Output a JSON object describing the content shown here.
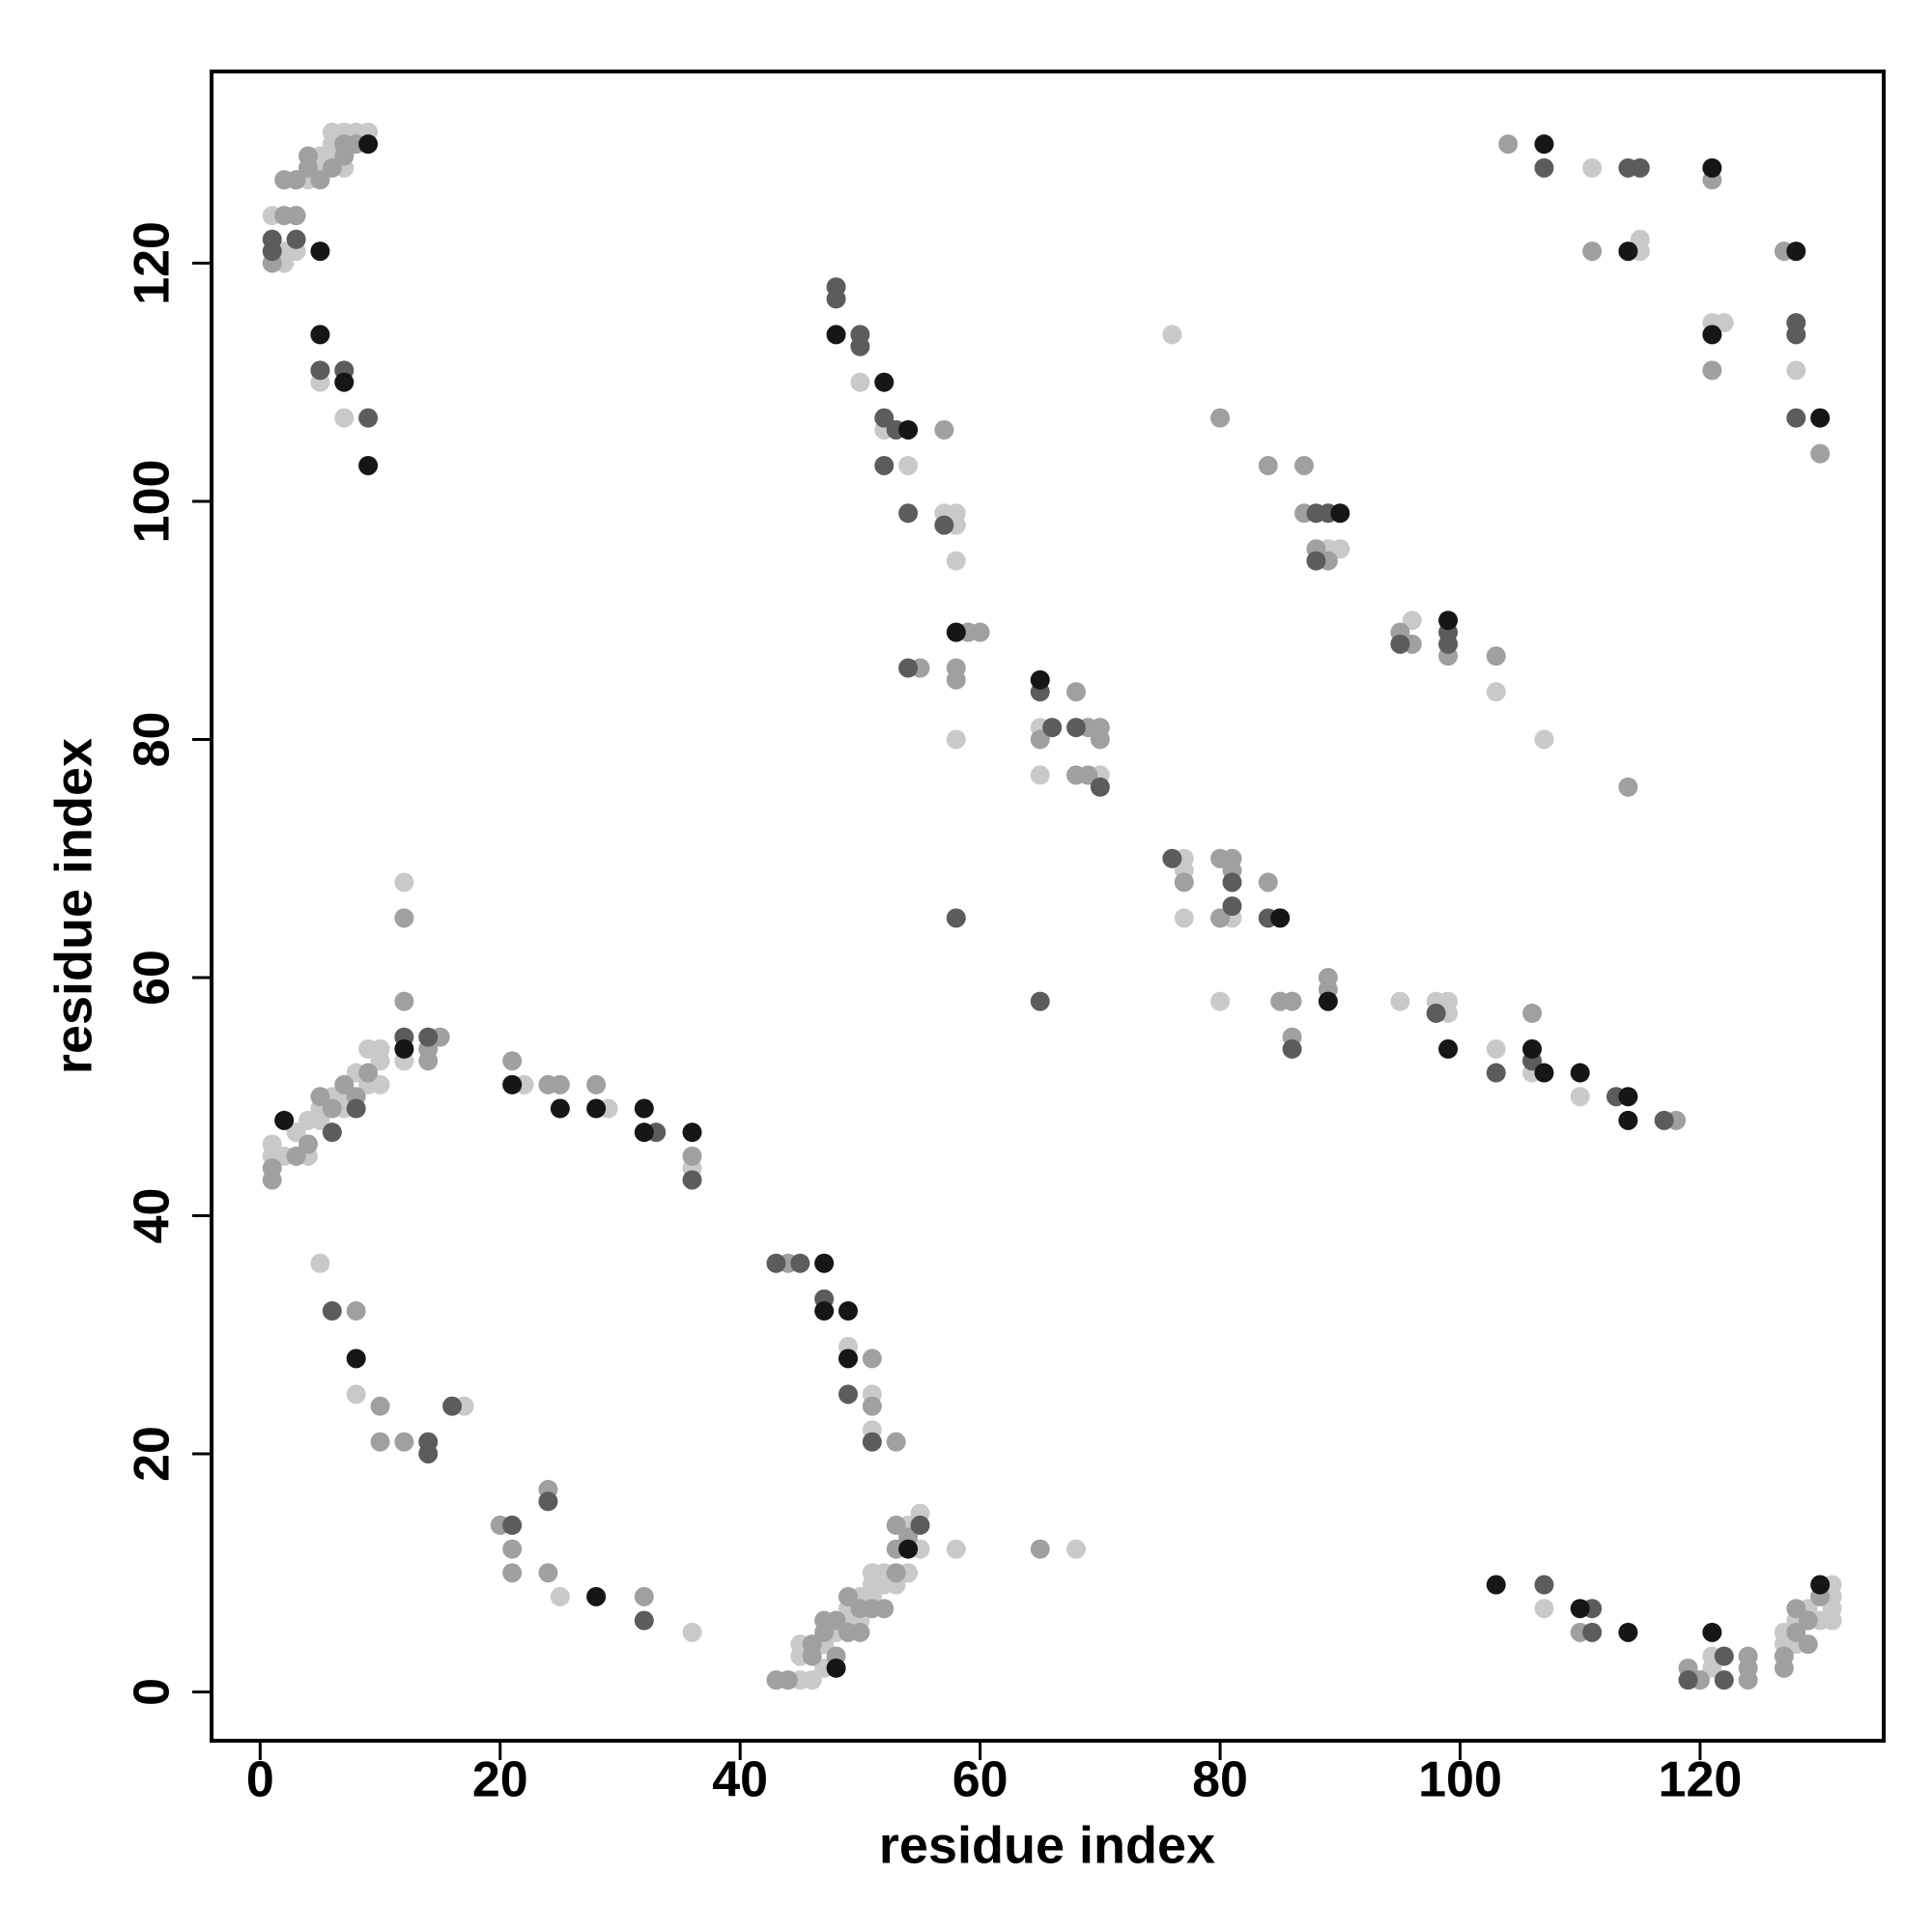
{
  "chart_data": {
    "type": "scatter",
    "xlabel": "residue index",
    "ylabel": "residue index",
    "xlim": [
      -4.05,
      135.3
    ],
    "ylim": [
      -4.1,
      136.1
    ],
    "xticks": [
      0,
      20,
      40,
      60,
      80,
      100,
      120
    ],
    "yticks": [
      0,
      20,
      40,
      60,
      80,
      100,
      120
    ],
    "grid": false,
    "series": [
      {
        "color": "#c9c9c9",
        "x": [
          1,
          2,
          2,
          3,
          4,
          5,
          5,
          6,
          6,
          7,
          7,
          8,
          9,
          6,
          5,
          7,
          50,
          52,
          54,
          57,
          58,
          58,
          58,
          58,
          65,
          65,
          70,
          76,
          89,
          90,
          96,
          107,
          103,
          77,
          77,
          77,
          81,
          80,
          95,
          98,
          99,
          99,
          103,
          106,
          110,
          111,
          115,
          115,
          121,
          122,
          128,
          1,
          1,
          2,
          3,
          4,
          4,
          5,
          5,
          6,
          7,
          7,
          8,
          9,
          9,
          10,
          10,
          10,
          12,
          12,
          22,
          29,
          36,
          5,
          8,
          17,
          25,
          36,
          49,
          51,
          51,
          45,
          45,
          45,
          46,
          47,
          47,
          48,
          49,
          49,
          50,
          50,
          51,
          51,
          51,
          52,
          52,
          53,
          54,
          54,
          55,
          55,
          58,
          68,
          107,
          121,
          121,
          127,
          127,
          128,
          128,
          129,
          130,
          131,
          131,
          131,
          131
        ],
        "values": [
          124,
          120,
          121,
          121,
          127,
          128,
          129,
          129,
          130,
          128,
          131,
          131,
          131,
          131,
          110,
          107,
          110,
          106,
          103,
          99,
          99,
          98,
          95,
          80,
          81,
          77,
          77,
          114,
          96,
          96,
          90,
          80,
          84,
          70,
          69,
          65,
          65,
          58,
          58,
          58,
          58,
          57,
          54,
          52,
          50,
          128,
          122,
          121,
          115,
          115,
          111,
          45,
          46,
          45,
          47,
          48,
          45,
          49,
          48,
          50,
          50,
          49,
          52,
          51,
          54,
          54,
          53,
          51,
          68,
          53,
          51,
          49,
          44,
          36,
          25,
          24,
          8,
          5,
          29,
          25,
          22,
          1,
          3,
          4,
          1,
          2,
          4,
          5,
          6,
          7,
          6,
          8,
          8,
          9,
          10,
          9,
          10,
          9,
          10,
          14,
          12,
          15,
          12,
          12,
          7,
          3,
          2,
          4,
          5,
          4,
          6,
          7,
          6,
          9,
          8,
          7,
          6
        ]
      },
      {
        "color": "#a0a0a0",
        "x": [
          1,
          2,
          2,
          3,
          3,
          4,
          4,
          5,
          6,
          7,
          7,
          8,
          57,
          59,
          60,
          55,
          58,
          58,
          65,
          68,
          69,
          70,
          70,
          68,
          69,
          80,
          84,
          87,
          87,
          88,
          89,
          95,
          96,
          99,
          103,
          114,
          77,
          80,
          81,
          81,
          80,
          84,
          85,
          86,
          86,
          89,
          89,
          106,
          118,
          104,
          111,
          121,
          121,
          127,
          130,
          1,
          1,
          3,
          4,
          5,
          6,
          7,
          8,
          9,
          12,
          12,
          14,
          14,
          15,
          21,
          24,
          25,
          28,
          36,
          8,
          10,
          10,
          12,
          20,
          21,
          21,
          24,
          24,
          32,
          44,
          51,
          51,
          53,
          43,
          44,
          46,
          46,
          47,
          47,
          48,
          48,
          49,
          49,
          50,
          50,
          51,
          52,
          53,
          53,
          53,
          54,
          65,
          110,
          119,
          120,
          124,
          124,
          124,
          127,
          127,
          128,
          128,
          129,
          129,
          130
        ],
        "values": [
          120,
          124,
          127,
          124,
          127,
          128,
          129,
          127,
          128,
          129,
          130,
          130,
          106,
          89,
          89,
          86,
          86,
          85,
          80,
          84,
          81,
          81,
          80,
          77,
          77,
          107,
          103,
          103,
          99,
          96,
          95,
          89,
          88,
          87,
          87,
          76,
          68,
          70,
          70,
          69,
          65,
          68,
          58,
          58,
          55,
          60,
          59,
          57,
          48,
          130,
          121,
          127,
          111,
          121,
          104,
          43,
          44,
          45,
          46,
          50,
          49,
          51,
          50,
          52,
          65,
          58,
          54,
          53,
          55,
          53,
          51,
          51,
          51,
          45,
          32,
          24,
          21,
          21,
          14,
          12,
          10,
          17,
          10,
          8,
          36,
          28,
          24,
          21,
          1,
          1,
          3,
          4,
          5,
          6,
          3,
          6,
          5,
          8,
          5,
          7,
          7,
          7,
          10,
          12,
          14,
          13,
          12,
          5,
          2,
          1,
          3,
          2,
          1,
          2,
          3,
          5,
          7,
          4,
          6,
          8
        ]
      },
      {
        "color": "#5c5c5c",
        "x": [
          1,
          1,
          3,
          5,
          7,
          9,
          48,
          48,
          50,
          50,
          52,
          53,
          52,
          54,
          57,
          54,
          58,
          65,
          66,
          68,
          70,
          65,
          88,
          89,
          88,
          95,
          99,
          99,
          76,
          81,
          81,
          84,
          86,
          98,
          103,
          106,
          113,
          117,
          107,
          114,
          115,
          128,
          128,
          128,
          6,
          8,
          12,
          14,
          33,
          36,
          6,
          14,
          14,
          16,
          21,
          24,
          32,
          43,
          45,
          47,
          49,
          51,
          55,
          107,
          111,
          111,
          119,
          122,
          122
        ],
        "values": [
          121,
          122,
          122,
          111,
          111,
          107,
          118,
          117,
          114,
          113,
          107,
          106,
          103,
          99,
          98,
          86,
          65,
          84,
          81,
          81,
          76,
          58,
          99,
          99,
          95,
          88,
          89,
          88,
          70,
          68,
          66,
          65,
          54,
          57,
          52,
          53,
          50,
          48,
          128,
          128,
          128,
          115,
          114,
          107,
          47,
          49,
          55,
          55,
          47,
          43,
          32,
          21,
          20,
          24,
          14,
          16,
          6,
          36,
          36,
          33,
          25,
          21,
          14,
          9,
          7,
          5,
          1,
          3,
          1
        ]
      },
      {
        "color": "#161616",
        "x": [
          5,
          9,
          5,
          7,
          9,
          48,
          52,
          54,
          58,
          65,
          90,
          99,
          85,
          89,
          99,
          106,
          107,
          110,
          114,
          114,
          107,
          114,
          121,
          121,
          128,
          130,
          2,
          12,
          21,
          25,
          28,
          32,
          32,
          36,
          8,
          28,
          47,
          47,
          49,
          49,
          48,
          54,
          103,
          110,
          114,
          121,
          130
        ],
        "values": [
          121,
          130,
          114,
          110,
          103,
          114,
          110,
          106,
          89,
          85,
          99,
          90,
          65,
          58,
          54,
          54,
          52,
          52,
          50,
          48,
          130,
          121,
          128,
          114,
          121,
          107,
          48,
          54,
          51,
          49,
          49,
          49,
          47,
          47,
          28,
          8,
          36,
          32,
          32,
          28,
          2,
          12,
          9,
          7,
          5,
          5,
          9
        ]
      }
    ]
  }
}
